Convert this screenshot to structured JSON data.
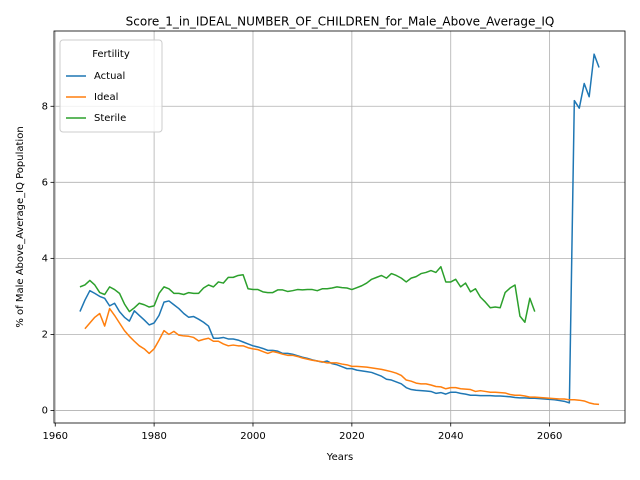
{
  "chart_data": {
    "type": "line",
    "title": "Score_1_in_IDEAL_NUMBER_OF_CHILDREN_for_Male_Above_Average_IQ",
    "xlabel": "Years",
    "ylabel": "% of Male Above_Average_IQ Population",
    "legend_title": "Fertility",
    "legend": "upper left",
    "grid": true,
    "xlim": [
      1959.75,
      2075.25
    ],
    "ylim": [
      -0.33,
      9.98
    ],
    "xticks": [
      1960,
      1980,
      2000,
      2020,
      2040,
      2060
    ],
    "yticks": [
      0,
      2,
      4,
      6,
      8
    ],
    "x": [
      1965,
      1966,
      1967,
      1968,
      1969,
      1970,
      1971,
      1972,
      1973,
      1974,
      1975,
      1976,
      1977,
      1978,
      1979,
      1980,
      1981,
      1982,
      1983,
      1984,
      1985,
      1986,
      1987,
      1988,
      1989,
      1990,
      1991,
      1992,
      1993,
      1994,
      1995,
      1996,
      1997,
      1998,
      1999,
      2000,
      2001,
      2002,
      2003,
      2004,
      2005,
      2006,
      2007,
      2008,
      2009,
      2010,
      2011,
      2012,
      2013,
      2014,
      2015,
      2016,
      2017,
      2018,
      2019,
      2020,
      2021,
      2022,
      2023,
      2024,
      2025,
      2026,
      2027,
      2028,
      2029,
      2030,
      2031,
      2032,
      2033,
      2034,
      2035,
      2036,
      2037,
      2038,
      2039,
      2040,
      2041,
      2042,
      2043,
      2044,
      2045,
      2046,
      2047,
      2048,
      2049,
      2050,
      2051,
      2052,
      2053,
      2054,
      2055,
      2056,
      2057,
      2058,
      2059,
      2060,
      2061,
      2062,
      2063,
      2064,
      2065,
      2066,
      2067,
      2068,
      2069,
      2070
    ],
    "series": [
      {
        "name": "Actual",
        "color": "#1f77b4",
        "values": [
          2.6,
          2.9,
          3.15,
          3.08,
          3.0,
          2.95,
          2.75,
          2.82,
          2.6,
          2.45,
          2.35,
          2.62,
          2.5,
          2.38,
          2.25,
          2.3,
          2.5,
          2.85,
          2.88,
          2.78,
          2.68,
          2.55,
          2.45,
          2.47,
          2.4,
          2.32,
          2.22,
          1.9,
          1.9,
          1.92,
          1.88,
          1.88,
          1.85,
          1.8,
          1.75,
          1.7,
          1.67,
          1.63,
          1.58,
          1.58,
          1.56,
          1.5,
          1.5,
          1.48,
          1.44,
          1.4,
          1.37,
          1.33,
          1.3,
          1.27,
          1.3,
          1.23,
          1.2,
          1.15,
          1.1,
          1.1,
          1.06,
          1.04,
          1.02,
          1.0,
          0.95,
          0.9,
          0.82,
          0.8,
          0.75,
          0.7,
          0.6,
          0.55,
          0.53,
          0.52,
          0.51,
          0.5,
          0.45,
          0.47,
          0.43,
          0.48,
          0.48,
          0.45,
          0.43,
          0.4,
          0.4,
          0.39,
          0.39,
          0.39,
          0.38,
          0.38,
          0.37,
          0.36,
          0.34,
          0.33,
          0.33,
          0.32,
          0.32,
          0.31,
          0.3,
          0.29,
          0.28,
          0.26,
          0.24,
          0.2,
          8.15,
          7.95,
          8.6,
          8.25,
          9.37,
          9.02
        ]
      },
      {
        "name": "Ideal",
        "color": "#ff7f0e",
        "values": [
          null,
          2.15,
          2.3,
          2.45,
          2.55,
          2.22,
          2.68,
          2.5,
          2.3,
          2.1,
          1.95,
          1.82,
          1.7,
          1.62,
          1.5,
          1.62,
          1.85,
          2.1,
          2.0,
          2.08,
          1.98,
          1.96,
          1.95,
          1.92,
          1.83,
          1.87,
          1.9,
          1.82,
          1.82,
          1.75,
          1.7,
          1.72,
          1.7,
          1.7,
          1.65,
          1.62,
          1.6,
          1.55,
          1.5,
          1.55,
          1.52,
          1.48,
          1.45,
          1.45,
          1.42,
          1.38,
          1.35,
          1.32,
          1.3,
          1.28,
          1.25,
          1.25,
          1.25,
          1.22,
          1.2,
          1.16,
          1.16,
          1.15,
          1.14,
          1.12,
          1.1,
          1.08,
          1.05,
          1.02,
          0.98,
          0.92,
          0.8,
          0.77,
          0.72,
          0.7,
          0.7,
          0.67,
          0.63,
          0.62,
          0.57,
          0.6,
          0.6,
          0.57,
          0.56,
          0.55,
          0.5,
          0.52,
          0.5,
          0.48,
          0.48,
          0.47,
          0.46,
          0.42,
          0.4,
          0.4,
          0.38,
          0.35,
          0.35,
          0.34,
          0.33,
          0.32,
          0.31,
          0.3,
          0.3,
          0.28,
          0.28,
          0.27,
          0.25,
          0.2,
          0.17,
          0.16
        ]
      },
      {
        "name": "Sterile",
        "color": "#2ca02c",
        "values": [
          3.25,
          3.3,
          3.42,
          3.3,
          3.1,
          3.05,
          3.25,
          3.18,
          3.08,
          2.8,
          2.6,
          2.7,
          2.82,
          2.78,
          2.72,
          2.75,
          3.08,
          3.25,
          3.2,
          3.08,
          3.08,
          3.05,
          3.1,
          3.08,
          3.08,
          3.22,
          3.3,
          3.25,
          3.38,
          3.35,
          3.5,
          3.5,
          3.55,
          3.57,
          3.2,
          3.18,
          3.18,
          3.12,
          3.1,
          3.1,
          3.17,
          3.17,
          3.13,
          3.15,
          3.18,
          3.17,
          3.18,
          3.18,
          3.15,
          3.2,
          3.2,
          3.22,
          3.25,
          3.23,
          3.22,
          3.18,
          3.23,
          3.28,
          3.35,
          3.45,
          3.5,
          3.55,
          3.48,
          3.6,
          3.55,
          3.48,
          3.38,
          3.48,
          3.52,
          3.6,
          3.63,
          3.68,
          3.63,
          3.78,
          3.38,
          3.38,
          3.45,
          3.25,
          3.35,
          3.12,
          3.2,
          2.98,
          2.85,
          2.7,
          2.72,
          2.7,
          3.1,
          3.22,
          3.3,
          2.48,
          2.32,
          2.95,
          2.6,
          null,
          null,
          null,
          null,
          null,
          null,
          null,
          null,
          null,
          null,
          null,
          null,
          null
        ]
      }
    ]
  }
}
